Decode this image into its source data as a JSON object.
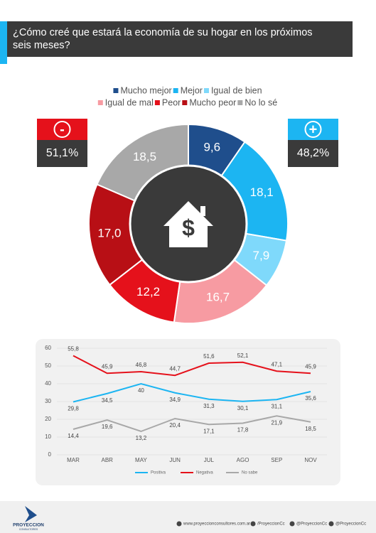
{
  "header": {
    "title": [
      "¿Cómo creé que estará la economía de su hogar en los próximos",
      "seis meses?"
    ]
  },
  "chart_data": [
    {
      "type": "pie",
      "categories": [
        "Mucho mejor",
        "Mejor",
        "Igual de bien",
        "Igual de mal",
        "Peor",
        "Mucho peor",
        "No lo sé"
      ],
      "values": [
        9.6,
        18.1,
        7.9,
        16.7,
        12.2,
        17.0,
        18.5
      ],
      "value_labels": [
        "9,6",
        "18,1",
        "7,9",
        "16,7",
        "12,2",
        "17,0",
        "18,5"
      ],
      "colors": [
        "#1f4e8c",
        "#1cb5f2",
        "#7fd9fb",
        "#f79ba2",
        "#e5111b",
        "#b80f15",
        "#a8a8a8"
      ],
      "annotations": [
        {
          "symbol": "-",
          "text": "51,1%",
          "color": "#e5111b"
        },
        {
          "symbol": "+",
          "text": "48,2%",
          "color": "#1cb5f2"
        }
      ]
    },
    {
      "type": "line",
      "categories": [
        "MAR",
        "ABR",
        "MAY",
        "JUN",
        "JUL",
        "AGO",
        "SEP",
        "NOV"
      ],
      "ylim": [
        0,
        60
      ],
      "yticks": [
        0,
        10,
        20,
        30,
        40,
        50,
        60
      ],
      "grid": true,
      "series": [
        {
          "name": "Positiva",
          "color": "#1cb5f2",
          "values": [
            29.8,
            34.5,
            40,
            34.9,
            31.3,
            30.1,
            31.1,
            35.6
          ],
          "value_labels": [
            "29,8",
            "34,5",
            "40",
            "34,9",
            "31,3",
            "30,1",
            "31,1",
            "35,6"
          ]
        },
        {
          "name": "Negativa",
          "color": "#e5111b",
          "values": [
            55.8,
            45.9,
            46.8,
            44.7,
            51.6,
            52.1,
            47.1,
            45.9
          ],
          "value_labels": [
            "55,8",
            "45,9",
            "46,8",
            "44,7",
            "51,6",
            "52,1",
            "47,1",
            "45,9"
          ]
        },
        {
          "name": "No sabe",
          "color": "#a8a8a8",
          "values": [
            14.4,
            19.6,
            13.2,
            20.4,
            17.1,
            17.8,
            21.9,
            18.5
          ],
          "value_labels": [
            "14,4",
            "19,6",
            "13,2",
            "20,4",
            "17,1",
            "17,8",
            "21,9",
            "18,5"
          ]
        }
      ]
    }
  ],
  "footer": {
    "brand": "PROYECCION",
    "sub": "CONSULTORES",
    "links": [
      "www.proyeccionconsultores.com.ar",
      "/ProyeccionCc",
      "@ProyeccionCc",
      "@ProyeccionCc"
    ]
  }
}
